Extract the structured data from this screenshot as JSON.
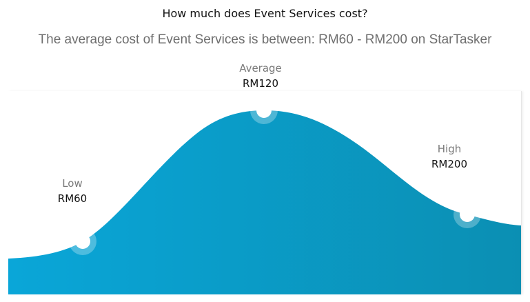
{
  "header": {
    "title": "How much does Event Services cost?",
    "subtitle": "The average cost of Event Services is between: RM60 - RM200 on StarTasker"
  },
  "markers": {
    "low": {
      "label": "Low",
      "value": "RM60"
    },
    "average": {
      "label": "Average",
      "value": "RM120"
    },
    "high": {
      "label": "High",
      "value": "RM200"
    }
  },
  "colors": {
    "curve_start": "#0aa6d8",
    "curve_end": "#0b8fb3",
    "marker_ring": "#d9eef5",
    "marker_center": "#ffffff"
  }
}
